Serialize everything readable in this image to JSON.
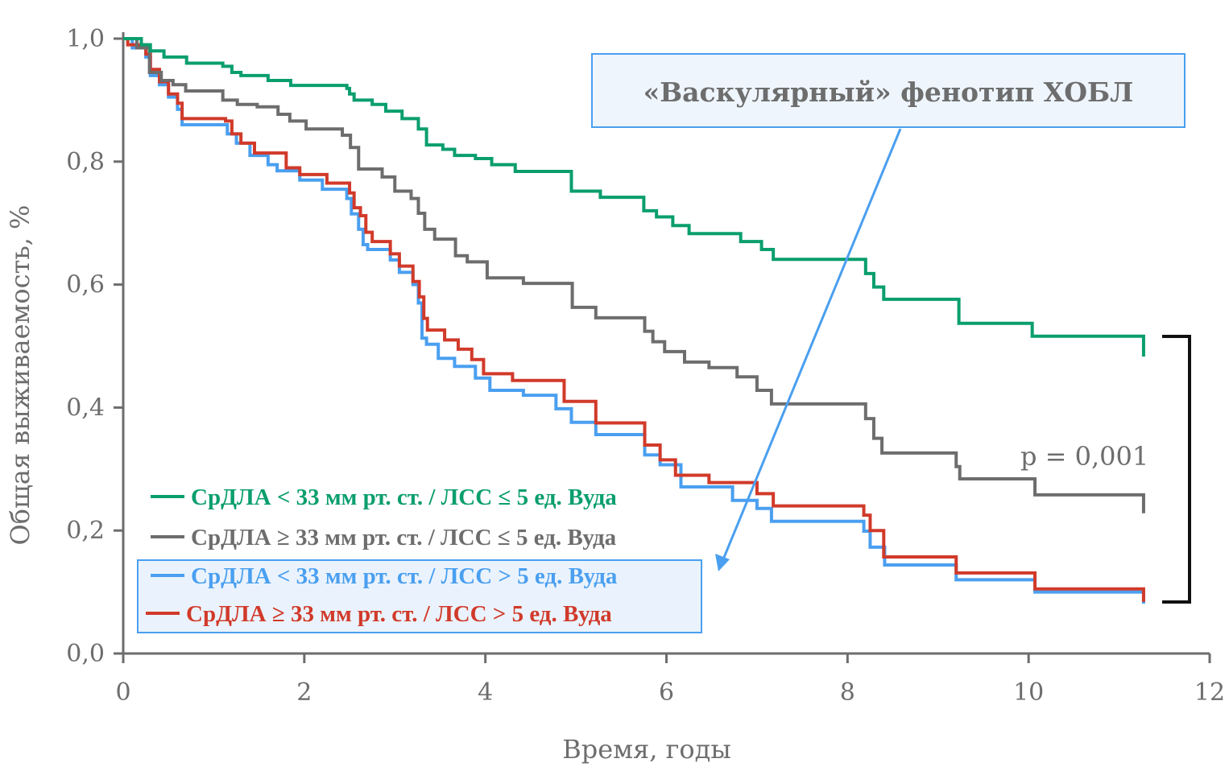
{
  "chart_data": {
    "type": "line",
    "subtype": "kaplan-meier step",
    "title": "«Васкулярный» фенотип ХОБЛ",
    "xlabel": "Время, годы",
    "ylabel": "Общая выживаемость, %",
    "xlim": [
      0,
      12
    ],
    "ylim": [
      0,
      1
    ],
    "xticks": [
      0,
      2,
      4,
      6,
      8,
      10,
      12
    ],
    "xtick_labels": [
      "0",
      "2",
      "4",
      "6",
      "8",
      "10",
      "12"
    ],
    "yticks": [
      0,
      0.2,
      0.4,
      0.6,
      0.8,
      1.0
    ],
    "ytick_labels": [
      "0,0",
      "0,2",
      "0,4",
      "0,6",
      "0,8",
      "1,0"
    ],
    "grid": false,
    "legend_position": "bottom-left",
    "annotation": "p = 0,001",
    "series": [
      {
        "name": "СрДЛА < 33 мм рт. ст. / ЛСС ≤ 5 ед. Вуда",
        "color": "#0a9e6e",
        "highlighted": false,
        "points": [
          [
            0,
            1.0
          ],
          [
            0.2,
            0.99
          ],
          [
            0.3,
            0.98
          ],
          [
            0.45,
            0.97
          ],
          [
            0.7,
            0.96
          ],
          [
            1.1,
            0.955
          ],
          [
            1.2,
            0.945
          ],
          [
            1.3,
            0.94
          ],
          [
            1.6,
            0.932
          ],
          [
            1.85,
            0.924
          ],
          [
            2.47,
            0.919
          ],
          [
            2.5,
            0.91
          ],
          [
            2.55,
            0.9
          ],
          [
            2.75,
            0.893
          ],
          [
            2.9,
            0.882
          ],
          [
            3.08,
            0.87
          ],
          [
            3.26,
            0.853
          ],
          [
            3.35,
            0.827
          ],
          [
            3.53,
            0.82
          ],
          [
            3.66,
            0.81
          ],
          [
            3.89,
            0.805
          ],
          [
            4.07,
            0.795
          ],
          [
            4.33,
            0.784
          ],
          [
            4.95,
            0.752
          ],
          [
            5.27,
            0.742
          ],
          [
            5.75,
            0.72
          ],
          [
            5.89,
            0.71
          ],
          [
            6.07,
            0.696
          ],
          [
            6.25,
            0.683
          ],
          [
            6.82,
            0.67
          ],
          [
            7.05,
            0.657
          ],
          [
            7.18,
            0.641
          ],
          [
            8.2,
            0.618
          ],
          [
            8.29,
            0.596
          ],
          [
            8.4,
            0.576
          ],
          [
            9.23,
            0.537
          ],
          [
            10.04,
            0.516
          ],
          [
            11.27,
            0.483
          ]
        ]
      },
      {
        "name": "СрДЛА ≥ 33 мм рт. ст. / ЛСС ≤ 5 ед. Вуда",
        "color": "#6d6d6d",
        "highlighted": false,
        "points": [
          [
            0,
            1.0
          ],
          [
            0.15,
            0.985
          ],
          [
            0.29,
            0.945
          ],
          [
            0.42,
            0.932
          ],
          [
            0.55,
            0.925
          ],
          [
            0.69,
            0.915
          ],
          [
            1.1,
            0.9
          ],
          [
            1.26,
            0.893
          ],
          [
            1.48,
            0.889
          ],
          [
            1.71,
            0.877
          ],
          [
            1.84,
            0.866
          ],
          [
            2.02,
            0.853
          ],
          [
            2.42,
            0.843
          ],
          [
            2.51,
            0.823
          ],
          [
            2.6,
            0.788
          ],
          [
            2.86,
            0.775
          ],
          [
            3.0,
            0.752
          ],
          [
            3.18,
            0.74
          ],
          [
            3.26,
            0.716
          ],
          [
            3.33,
            0.69
          ],
          [
            3.44,
            0.674
          ],
          [
            3.67,
            0.647
          ],
          [
            3.8,
            0.637
          ],
          [
            4.02,
            0.611
          ],
          [
            4.42,
            0.602
          ],
          [
            4.96,
            0.563
          ],
          [
            5.22,
            0.546
          ],
          [
            5.76,
            0.524
          ],
          [
            5.85,
            0.507
          ],
          [
            5.98,
            0.491
          ],
          [
            6.2,
            0.474
          ],
          [
            6.47,
            0.465
          ],
          [
            6.78,
            0.45
          ],
          [
            7.0,
            0.428
          ],
          [
            7.16,
            0.406
          ],
          [
            8.2,
            0.382
          ],
          [
            8.29,
            0.35
          ],
          [
            8.38,
            0.326
          ],
          [
            9.2,
            0.304
          ],
          [
            9.24,
            0.284
          ],
          [
            10.07,
            0.258
          ],
          [
            11.27,
            0.228
          ]
        ]
      },
      {
        "name": "СрДЛА < 33 мм рт. ст. / ЛСС > 5 ед. Вуда",
        "color": "#4a9ff0",
        "highlighted": true,
        "points": [
          [
            0,
            1.0
          ],
          [
            0.1,
            0.985
          ],
          [
            0.25,
            0.97
          ],
          [
            0.3,
            0.94
          ],
          [
            0.4,
            0.925
          ],
          [
            0.5,
            0.905
          ],
          [
            0.6,
            0.885
          ],
          [
            0.65,
            0.86
          ],
          [
            1.15,
            0.845
          ],
          [
            1.25,
            0.83
          ],
          [
            1.4,
            0.81
          ],
          [
            1.6,
            0.795
          ],
          [
            1.7,
            0.785
          ],
          [
            1.95,
            0.77
          ],
          [
            2.2,
            0.755
          ],
          [
            2.47,
            0.74
          ],
          [
            2.52,
            0.715
          ],
          [
            2.6,
            0.69
          ],
          [
            2.65,
            0.665
          ],
          [
            2.7,
            0.657
          ],
          [
            2.95,
            0.64
          ],
          [
            3.05,
            0.62
          ],
          [
            3.2,
            0.6
          ],
          [
            3.26,
            0.57
          ],
          [
            3.3,
            0.513
          ],
          [
            3.35,
            0.503
          ],
          [
            3.48,
            0.48
          ],
          [
            3.66,
            0.467
          ],
          [
            3.89,
            0.448
          ],
          [
            4.05,
            0.428
          ],
          [
            4.42,
            0.42
          ],
          [
            4.78,
            0.398
          ],
          [
            4.95,
            0.376
          ],
          [
            5.22,
            0.356
          ],
          [
            5.76,
            0.323
          ],
          [
            5.93,
            0.307
          ],
          [
            6.16,
            0.271
          ],
          [
            6.73,
            0.249
          ],
          [
            7.0,
            0.236
          ],
          [
            7.16,
            0.215
          ],
          [
            8.18,
            0.199
          ],
          [
            8.25,
            0.173
          ],
          [
            8.41,
            0.144
          ],
          [
            9.2,
            0.12
          ],
          [
            10.07,
            0.1
          ],
          [
            11.27,
            0.081
          ]
        ]
      },
      {
        "name": "СрДЛА ≥ 33 мм рт. ст. / ЛСС > 5 ед. Вуда",
        "color": "#d13a2a",
        "highlighted": true,
        "points": [
          [
            0,
            1.0
          ],
          [
            0.05,
            0.99
          ],
          [
            0.25,
            0.975
          ],
          [
            0.3,
            0.95
          ],
          [
            0.4,
            0.93
          ],
          [
            0.5,
            0.91
          ],
          [
            0.6,
            0.895
          ],
          [
            0.65,
            0.87
          ],
          [
            1.13,
            0.866
          ],
          [
            1.2,
            0.845
          ],
          [
            1.3,
            0.83
          ],
          [
            1.45,
            0.814
          ],
          [
            1.8,
            0.79
          ],
          [
            1.95,
            0.779
          ],
          [
            2.25,
            0.765
          ],
          [
            2.5,
            0.749
          ],
          [
            2.55,
            0.725
          ],
          [
            2.62,
            0.712
          ],
          [
            2.68,
            0.685
          ],
          [
            2.75,
            0.67
          ],
          [
            2.95,
            0.65
          ],
          [
            3.05,
            0.63
          ],
          [
            3.2,
            0.605
          ],
          [
            3.27,
            0.58
          ],
          [
            3.32,
            0.545
          ],
          [
            3.36,
            0.526
          ],
          [
            3.55,
            0.51
          ],
          [
            3.7,
            0.495
          ],
          [
            3.85,
            0.478
          ],
          [
            3.98,
            0.455
          ],
          [
            4.3,
            0.444
          ],
          [
            4.87,
            0.41
          ],
          [
            5.22,
            0.375
          ],
          [
            5.76,
            0.339
          ],
          [
            5.93,
            0.315
          ],
          [
            6.1,
            0.29
          ],
          [
            6.47,
            0.278
          ],
          [
            7.0,
            0.26
          ],
          [
            7.18,
            0.24
          ],
          [
            8.18,
            0.225
          ],
          [
            8.25,
            0.2
          ],
          [
            8.4,
            0.157
          ],
          [
            9.2,
            0.131
          ],
          [
            10.07,
            0.105
          ],
          [
            11.27,
            0.084
          ]
        ]
      }
    ]
  }
}
